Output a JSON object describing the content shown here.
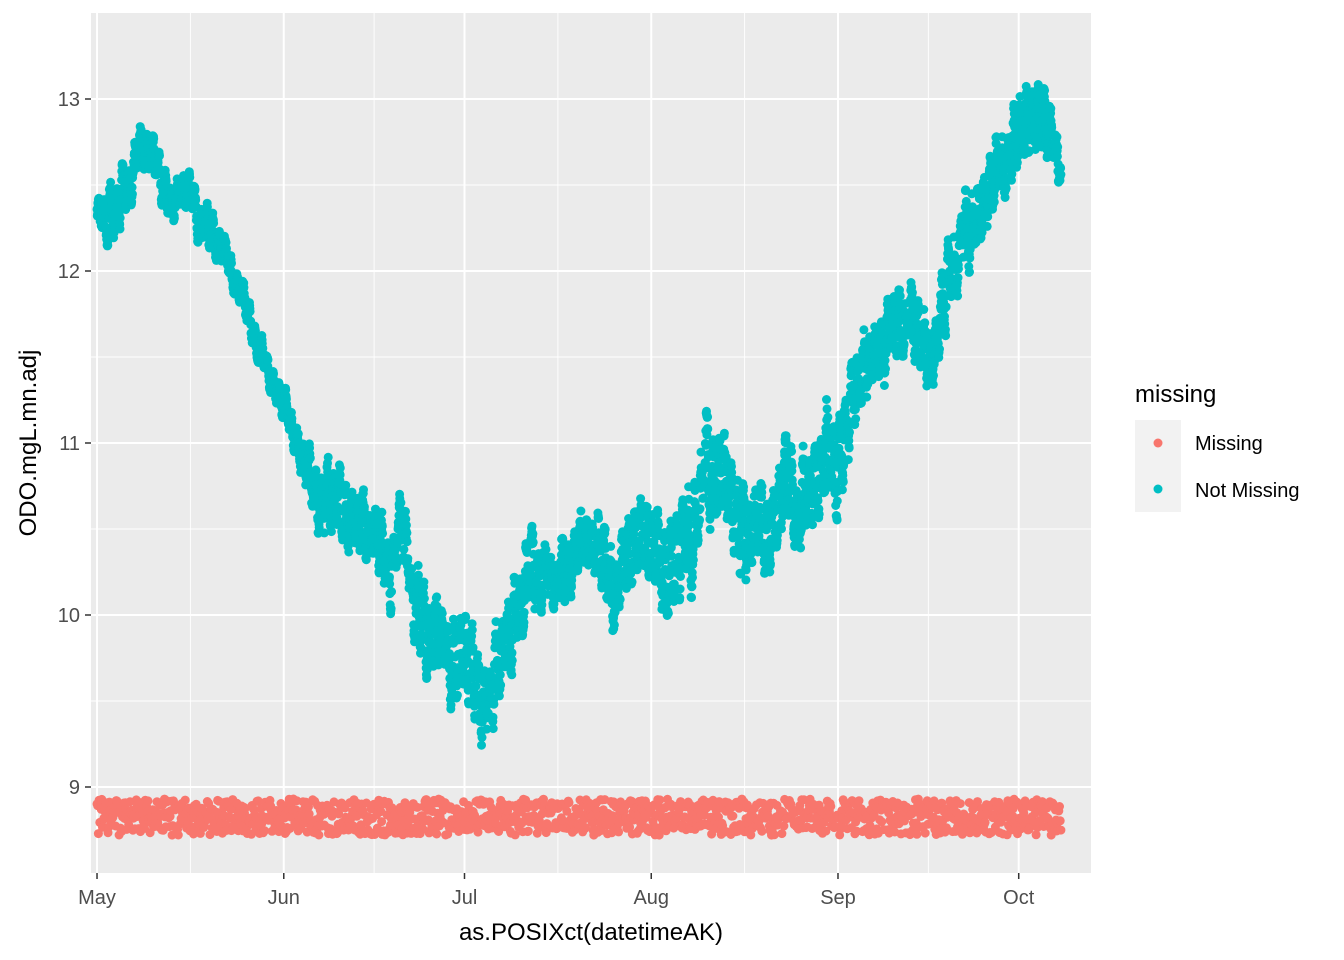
{
  "chart_data": {
    "type": "scatter",
    "title": "",
    "xlabel": "as.POSIXct(datetimeAK)",
    "ylabel": "ODO.mgL.mn.adj",
    "x_type": "date",
    "xlim": [
      "2021-04-30",
      "2021-10-13"
    ],
    "ylim": [
      8.5,
      13.5
    ],
    "x_ticks": [
      {
        "date": "2021-05-01",
        "label": "May"
      },
      {
        "date": "2021-06-01",
        "label": "Jun"
      },
      {
        "date": "2021-07-01",
        "label": "Jul"
      },
      {
        "date": "2021-08-01",
        "label": "Aug"
      },
      {
        "date": "2021-09-01",
        "label": "Sep"
      },
      {
        "date": "2021-10-01",
        "label": "Oct"
      }
    ],
    "y_ticks": [
      9,
      10,
      11,
      12,
      13
    ],
    "grid": true,
    "panel_background": "#EBEBEB",
    "legend": {
      "title": "missing",
      "position": "right"
    },
    "series": [
      {
        "name": "Missing",
        "color": "#F8766D",
        "band": [
          8.72,
          8.93
        ],
        "x": [
          "2021-05-01",
          "2021-06-01",
          "2021-07-01",
          "2021-08-01",
          "2021-09-01",
          "2021-10-01",
          "2021-10-08"
        ],
        "y": [
          8.82,
          8.82,
          8.83,
          8.82,
          8.82,
          8.83,
          8.82
        ]
      },
      {
        "name": "Not Missing",
        "color": "#00BFC4",
        "x": [
          "2021-05-01",
          "2021-05-04",
          "2021-05-07",
          "2021-05-10",
          "2021-05-13",
          "2021-05-16",
          "2021-05-19",
          "2021-05-22",
          "2021-05-25",
          "2021-05-28",
          "2021-05-31",
          "2021-06-03",
          "2021-06-06",
          "2021-06-09",
          "2021-06-12",
          "2021-06-15",
          "2021-06-18",
          "2021-06-21",
          "2021-06-24",
          "2021-06-27",
          "2021-06-30",
          "2021-07-03",
          "2021-07-06",
          "2021-07-09",
          "2021-07-12",
          "2021-07-15",
          "2021-07-18",
          "2021-07-21",
          "2021-07-24",
          "2021-07-27",
          "2021-07-30",
          "2021-08-02",
          "2021-08-05",
          "2021-08-08",
          "2021-08-11",
          "2021-08-14",
          "2021-08-17",
          "2021-08-20",
          "2021-08-23",
          "2021-08-26",
          "2021-08-29",
          "2021-09-01",
          "2021-09-04",
          "2021-09-07",
          "2021-09-10",
          "2021-09-13",
          "2021-09-16",
          "2021-09-19",
          "2021-09-22",
          "2021-09-25",
          "2021-09-28",
          "2021-10-01",
          "2021-10-04",
          "2021-10-07",
          "2021-10-08"
        ],
        "y": [
          12.35,
          12.4,
          12.6,
          12.65,
          12.45,
          12.5,
          12.3,
          12.05,
          11.8,
          11.55,
          11.35,
          11.1,
          10.8,
          10.6,
          10.55,
          10.5,
          10.35,
          10.3,
          10.15,
          10.0,
          9.8,
          9.65,
          9.55,
          9.75,
          10.15,
          10.3,
          10.4,
          10.45,
          10.3,
          10.2,
          10.5,
          10.3,
          10.2,
          10.55,
          10.8,
          10.75,
          10.45,
          10.4,
          10.55,
          10.6,
          10.75,
          10.9,
          11.15,
          11.35,
          11.6,
          11.75,
          11.7,
          11.9,
          12.15,
          12.45,
          12.6,
          12.75,
          12.85,
          12.7,
          12.55
        ],
        "spread": [
          0.15,
          0.2,
          0.15,
          0.15,
          0.15,
          0.15,
          0.15,
          0.12,
          0.1,
          0.1,
          0.1,
          0.12,
          0.2,
          0.25,
          0.2,
          0.2,
          0.25,
          0.25,
          0.3,
          0.3,
          0.3,
          0.3,
          0.3,
          0.3,
          0.25,
          0.2,
          0.2,
          0.2,
          0.25,
          0.3,
          0.3,
          0.3,
          0.3,
          0.35,
          0.3,
          0.3,
          0.3,
          0.3,
          0.3,
          0.3,
          0.3,
          0.3,
          0.3,
          0.3,
          0.25,
          0.25,
          0.25,
          0.25,
          0.25,
          0.25,
          0.25,
          0.25,
          0.25,
          0.2,
          0.2
        ]
      }
    ]
  }
}
